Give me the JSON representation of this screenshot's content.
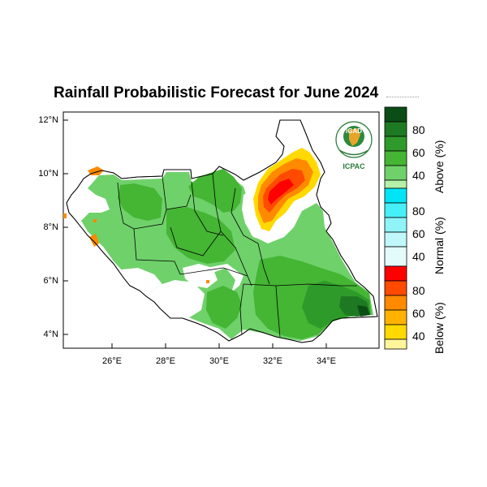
{
  "title": "Rainfall Probabilistic Forecast for June 2024",
  "y_axis": {
    "ticks": [
      "12°N",
      "10°N",
      "8°N",
      "6°N",
      "4°N"
    ]
  },
  "x_axis": {
    "ticks": [
      "26°E",
      "28°E",
      "30°E",
      "32°E",
      "34°E"
    ]
  },
  "colorbar": {
    "above": {
      "title": "Above (%)",
      "labels": [
        "80",
        "60",
        "40"
      ],
      "colors": [
        "#0a4d16",
        "#1e7a22",
        "#2e9a2a",
        "#45b534",
        "#6fd16a",
        "#b4f0a8"
      ]
    },
    "normal": {
      "title": "Normal (%)",
      "labels": [
        "80",
        "60",
        "40"
      ],
      "colors": [
        "#00e5f5",
        "#46f0f8",
        "#8ff4f8",
        "#bff7fa",
        "#e4fbfc"
      ]
    },
    "below": {
      "title": "Below (%)",
      "labels": [
        "80",
        "60",
        "40"
      ],
      "colors": [
        "#ff0000",
        "#ff4a00",
        "#ff8a00",
        "#ffb300",
        "#ffd900",
        "#fff59a"
      ]
    }
  },
  "logo": {
    "top_text": "IGAD",
    "bottom_text": "ICPAC"
  },
  "map": {
    "region": "South Sudan",
    "lon_range": [
      24,
      36
    ],
    "lat_range": [
      3.5,
      12.3
    ]
  }
}
